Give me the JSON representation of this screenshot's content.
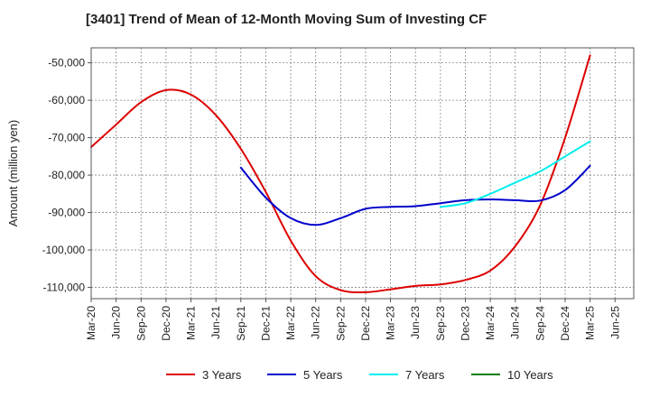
{
  "chart_data": {
    "type": "line",
    "title": "[3401]  Trend of Mean of 12-Month Moving Sum of Investing CF",
    "xlabel": "",
    "ylabel": "Amount (million yen)",
    "ylim": [
      -113000,
      -46000
    ],
    "y_ticks": [
      -50000,
      -60000,
      -70000,
      -80000,
      -90000,
      -100000,
      -110000
    ],
    "y_tick_labels": [
      "-50,000",
      "-60,000",
      "-70,000",
      "-80,000",
      "-90,000",
      "-100,000",
      "-110,000"
    ],
    "x_tick_labels": [
      "Mar-20",
      "Jun-20",
      "Sep-20",
      "Dec-20",
      "Mar-21",
      "Jun-21",
      "Sep-21",
      "Dec-21",
      "Mar-22",
      "Jun-22",
      "Sep-22",
      "Dec-22",
      "Mar-23",
      "Jun-23",
      "Sep-23",
      "Dec-23",
      "Mar-24",
      "Jun-24",
      "Sep-24",
      "Dec-24",
      "Mar-25",
      "Jun-25"
    ],
    "grid": true,
    "legend_position": "bottom",
    "series": [
      {
        "name": "3 Years",
        "color": "#dd0000",
        "points": [
          [
            "Mar-20",
            -72500
          ],
          [
            "Jun-20",
            -66500
          ],
          [
            "Sep-20",
            -60500
          ],
          [
            "Dec-20",
            -57300
          ],
          [
            "Mar-21",
            -58500
          ],
          [
            "Jun-21",
            -64000
          ],
          [
            "Sep-21",
            -73000
          ],
          [
            "Dec-21",
            -84500
          ],
          [
            "Mar-22",
            -97500
          ],
          [
            "Jun-22",
            -107000
          ],
          [
            "Sep-22",
            -110700
          ],
          [
            "Dec-22",
            -111300
          ],
          [
            "Mar-23",
            -110500
          ],
          [
            "Jun-23",
            -109600
          ],
          [
            "Sep-23",
            -109200
          ],
          [
            "Dec-23",
            -108000
          ],
          [
            "Mar-24",
            -105500
          ],
          [
            "Jun-24",
            -99000
          ],
          [
            "Sep-24",
            -88000
          ],
          [
            "Dec-24",
            -70000
          ],
          [
            "Mar-25",
            -48000
          ]
        ]
      },
      {
        "name": "5 Years",
        "color": "#0000cc",
        "points": [
          [
            "Sep-21",
            -78000
          ],
          [
            "Dec-21",
            -86000
          ],
          [
            "Mar-22",
            -91500
          ],
          [
            "Jun-22",
            -93300
          ],
          [
            "Sep-22",
            -91500
          ],
          [
            "Dec-22",
            -89000
          ],
          [
            "Mar-23",
            -88500
          ],
          [
            "Jun-23",
            -88300
          ],
          [
            "Sep-23",
            -87500
          ],
          [
            "Dec-23",
            -86700
          ],
          [
            "Mar-24",
            -86500
          ],
          [
            "Jun-24",
            -86700
          ],
          [
            "Sep-24",
            -86800
          ],
          [
            "Dec-24",
            -84000
          ],
          [
            "Mar-25",
            -77500
          ]
        ]
      },
      {
        "name": "7 Years",
        "color": "#00eeee",
        "points": [
          [
            "Sep-23",
            -88500
          ],
          [
            "Dec-23",
            -87500
          ],
          [
            "Mar-24",
            -85000
          ],
          [
            "Jun-24",
            -82000
          ],
          [
            "Sep-24",
            -79000
          ],
          [
            "Dec-24",
            -75000
          ],
          [
            "Mar-25",
            -71000
          ]
        ]
      },
      {
        "name": "10 Years",
        "color": "#008000",
        "points": []
      }
    ]
  }
}
